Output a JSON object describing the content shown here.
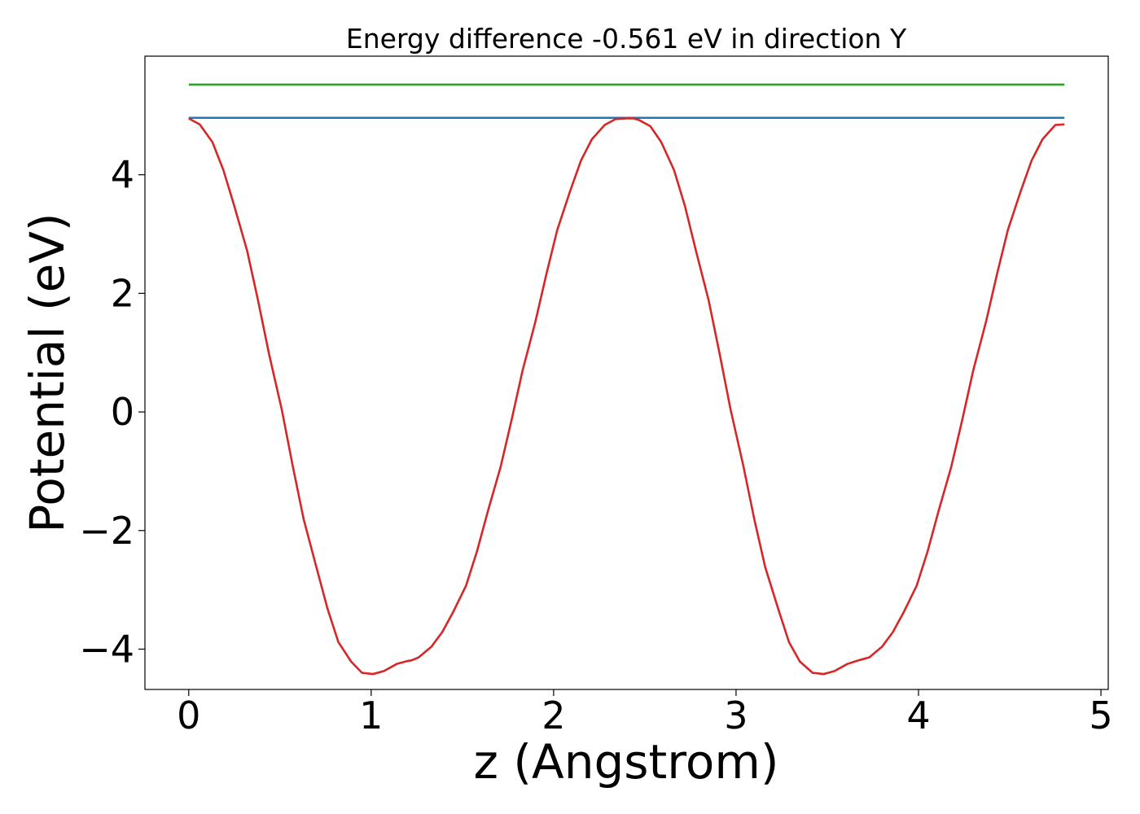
{
  "chart_data": {
    "type": "line",
    "title": "Energy difference -0.561 eV in direction Y",
    "xlabel": "z (Angstrom)",
    "ylabel": "Potential (eV)",
    "xlim": [
      -0.24,
      5.04
    ],
    "ylim": [
      -4.68,
      6.0
    ],
    "grid": false,
    "legend": "none",
    "x_ticks": [
      0,
      1,
      2,
      3,
      4,
      5
    ],
    "x_tick_labels": [
      "0",
      "1",
      "2",
      "3",
      "4",
      "5"
    ],
    "y_ticks": [
      -4,
      -2,
      0,
      2,
      4
    ],
    "y_tick_labels": [
      "−4",
      "−2",
      "0",
      "2",
      "4"
    ],
    "series": [
      {
        "color": "#2ca02c",
        "x": [
          0.0,
          4.8
        ],
        "y": [
          5.52,
          5.52
        ]
      },
      {
        "color": "#1f77b4",
        "x": [
          0.0,
          4.8
        ],
        "y": [
          4.96,
          4.96
        ]
      },
      {
        "color": "#d62728",
        "x": [
          0.0,
          0.06,
          0.13,
          0.19,
          0.25,
          0.32,
          0.38,
          0.44,
          0.51,
          0.57,
          0.63,
          0.7,
          0.76,
          0.82,
          0.89,
          0.95,
          1.01,
          1.07,
          1.14,
          1.2,
          1.22,
          1.26,
          1.33,
          1.39,
          1.45,
          1.52,
          1.58,
          1.64,
          1.71,
          1.77,
          1.83,
          1.9,
          1.96,
          2.02,
          2.09,
          2.15,
          2.21,
          2.28,
          2.34,
          2.4,
          2.44,
          2.47,
          2.53,
          2.59,
          2.66,
          2.72,
          2.78,
          2.85,
          2.91,
          2.97,
          3.04,
          3.1,
          3.16,
          3.23,
          3.29,
          3.35,
          3.42,
          3.48,
          3.54,
          3.61,
          3.66,
          3.67,
          3.73,
          3.8,
          3.86,
          3.92,
          3.99,
          4.05,
          4.11,
          4.18,
          4.24,
          4.3,
          4.37,
          4.43,
          4.49,
          4.56,
          4.62,
          4.68,
          4.75,
          4.8
        ],
        "y": [
          4.95,
          4.85,
          4.55,
          4.08,
          3.47,
          2.72,
          1.88,
          0.98,
          0.04,
          -0.91,
          -1.81,
          -2.62,
          -3.31,
          -3.88,
          -4.21,
          -4.4,
          -4.42,
          -4.37,
          -4.25,
          -4.2,
          -4.19,
          -4.14,
          -3.96,
          -3.71,
          -3.37,
          -2.93,
          -2.35,
          -1.67,
          -0.92,
          -0.13,
          0.7,
          1.52,
          2.32,
          3.07,
          3.72,
          4.24,
          4.6,
          4.84,
          4.94,
          4.95,
          4.95,
          4.92,
          4.82,
          4.55,
          4.08,
          3.47,
          2.72,
          1.88,
          0.98,
          0.04,
          -0.91,
          -1.81,
          -2.62,
          -3.31,
          -3.88,
          -4.21,
          -4.4,
          -4.42,
          -4.37,
          -4.25,
          -4.2,
          -4.19,
          -4.14,
          -3.96,
          -3.71,
          -3.37,
          -2.93,
          -2.35,
          -1.67,
          -0.92,
          -0.13,
          0.7,
          1.52,
          2.32,
          3.07,
          3.72,
          4.24,
          4.6,
          4.84,
          4.85
        ]
      }
    ]
  }
}
